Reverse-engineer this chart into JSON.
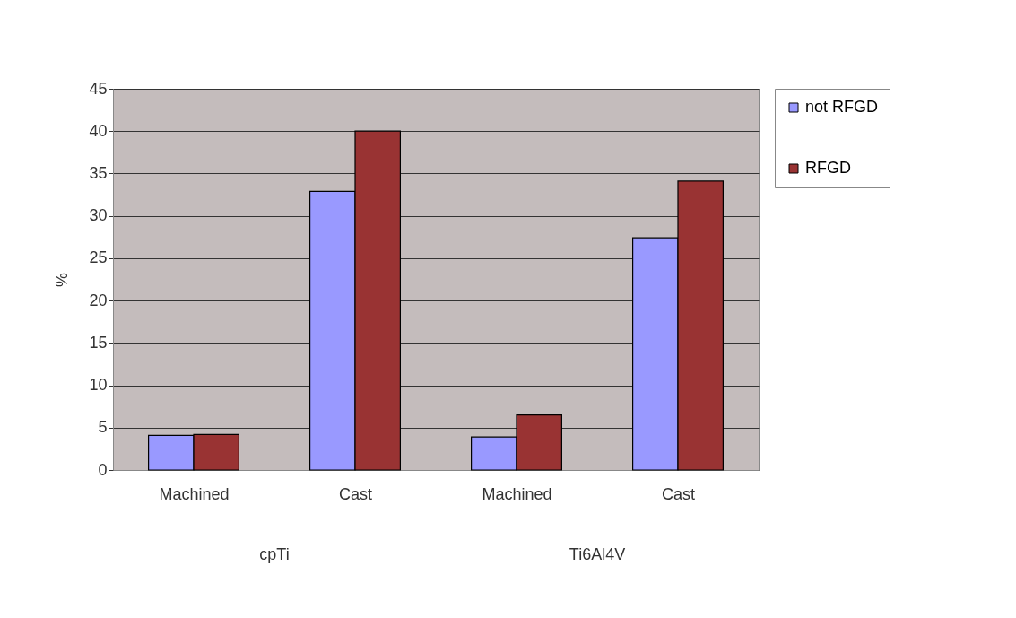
{
  "chart_data": {
    "type": "bar",
    "ylabel": "%",
    "categories": [
      "Machined",
      "Cast",
      "Machined",
      "Cast"
    ],
    "annotations": [
      "cpTi",
      "Ti6Al4V"
    ],
    "series": [
      {
        "name": "not RFGD",
        "color": "#9999ff",
        "values": [
          4.1,
          32.9,
          3.9,
          27.4
        ]
      },
      {
        "name": "RFGD",
        "color": "#993333",
        "values": [
          4.2,
          40.0,
          6.5,
          34.1
        ]
      }
    ],
    "ylim": [
      0,
      45
    ],
    "yticks": [
      0,
      5,
      10,
      15,
      20,
      25,
      30,
      35,
      40,
      45
    ],
    "grid": "y",
    "legend": "right"
  }
}
